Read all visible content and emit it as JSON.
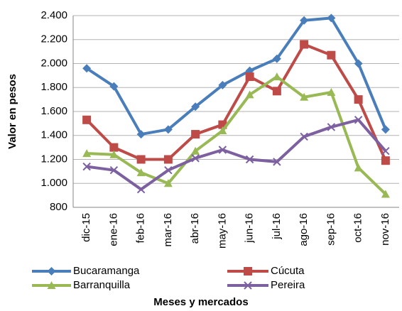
{
  "chart_data": {
    "type": "line",
    "x_label": "Meses y mercados",
    "y_label": "Valor en pesos",
    "categories": [
      "dic-15",
      "ene-16",
      "feb-16",
      "mar-16",
      "abr-16",
      "may-16",
      "jun-16",
      "jul-16",
      "ago-16",
      "sep-16",
      "oct-16",
      "nov-16"
    ],
    "series": [
      {
        "name": "Bucaramanga",
        "color": "#4a7ebb",
        "marker": "diamond",
        "values": [
          1960,
          1810,
          1410,
          1450,
          1640,
          1820,
          1940,
          2040,
          2360,
          2380,
          2000,
          1450
        ]
      },
      {
        "name": "Cúcuta",
        "color": "#be4b48",
        "marker": "square",
        "values": [
          1530,
          1300,
          1200,
          1200,
          1410,
          1490,
          1890,
          1770,
          2160,
          2070,
          1700,
          1190
        ]
      },
      {
        "name": "Barranquilla",
        "color": "#98b954",
        "marker": "triangle",
        "values": [
          1250,
          1240,
          1090,
          1000,
          1270,
          1440,
          1740,
          1890,
          1720,
          1760,
          1130,
          910
        ]
      },
      {
        "name": "Pereira",
        "color": "#7d60a0",
        "marker": "x",
        "values": [
          1140,
          1110,
          950,
          1110,
          1210,
          1280,
          1200,
          1180,
          1390,
          1470,
          1530,
          1270
        ]
      }
    ],
    "ylim": [
      800,
      2400
    ],
    "yticks": [
      {
        "value": 800,
        "label": "800"
      },
      {
        "value": 1000,
        "label": "1.000"
      },
      {
        "value": 1200,
        "label": "1.200"
      },
      {
        "value": 1400,
        "label": "1.400"
      },
      {
        "value": 1600,
        "label": "1.600"
      },
      {
        "value": 1800,
        "label": "1.800"
      },
      {
        "value": 2000,
        "label": "2.000"
      },
      {
        "value": 2200,
        "label": "2.200"
      },
      {
        "value": 2400,
        "label": "2.400"
      }
    ],
    "grid": true,
    "legend": "bottom"
  }
}
